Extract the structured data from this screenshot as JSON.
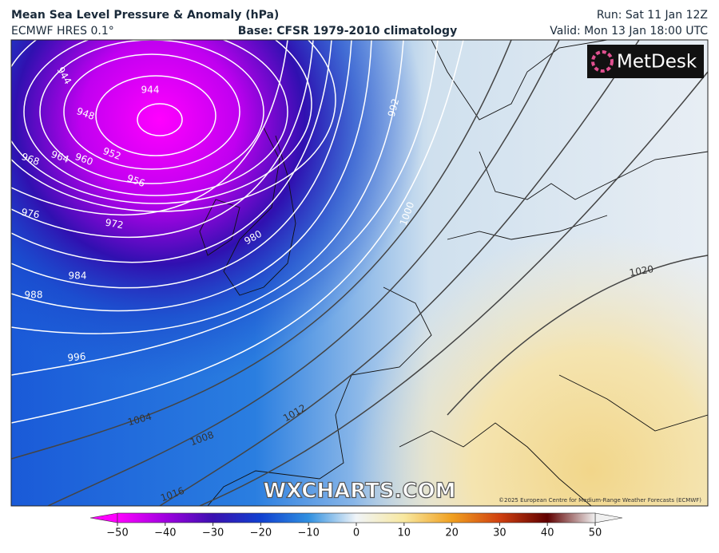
{
  "header": {
    "title": "Mean Sea Level Pressure & Anomaly (hPa)",
    "model": "ECMWF HRES 0.1°",
    "base": "Base: CFSR 1979-2010 climatology",
    "run": "Run: Sat 11 Jan 12Z",
    "valid": "Valid: Mon 13 Jan 18:00 UTC"
  },
  "map": {
    "logo": "MetDesk",
    "watermark": "WXCHARTS.COM",
    "copyright": "©2025 European Centre for Medium-Range Weather Forecasts (ECMWF)",
    "isobar_labels": [
      944,
      944,
      948,
      952,
      956,
      960,
      964,
      968,
      972,
      976,
      980,
      984,
      988,
      992,
      996,
      1000,
      1004,
      1008,
      1012,
      1016,
      1020
    ]
  },
  "colorbar": {
    "lim": [
      -50,
      50
    ],
    "ticks": [
      {
        "value": -50,
        "label": "−50"
      },
      {
        "value": -40,
        "label": "−40"
      },
      {
        "value": -30,
        "label": "−30"
      },
      {
        "value": -20,
        "label": "−20"
      },
      {
        "value": -10,
        "label": "−10"
      },
      0,
      10,
      20,
      30,
      40,
      50
    ],
    "colors": [
      "#ff00ff",
      "#a000e0",
      "#3a10b0",
      "#1040d0",
      "#3090e0",
      "#f0f4f8",
      "#f8e8a0",
      "#f0a020",
      "#d04010",
      "#600000",
      "#f0f0f0"
    ]
  }
}
